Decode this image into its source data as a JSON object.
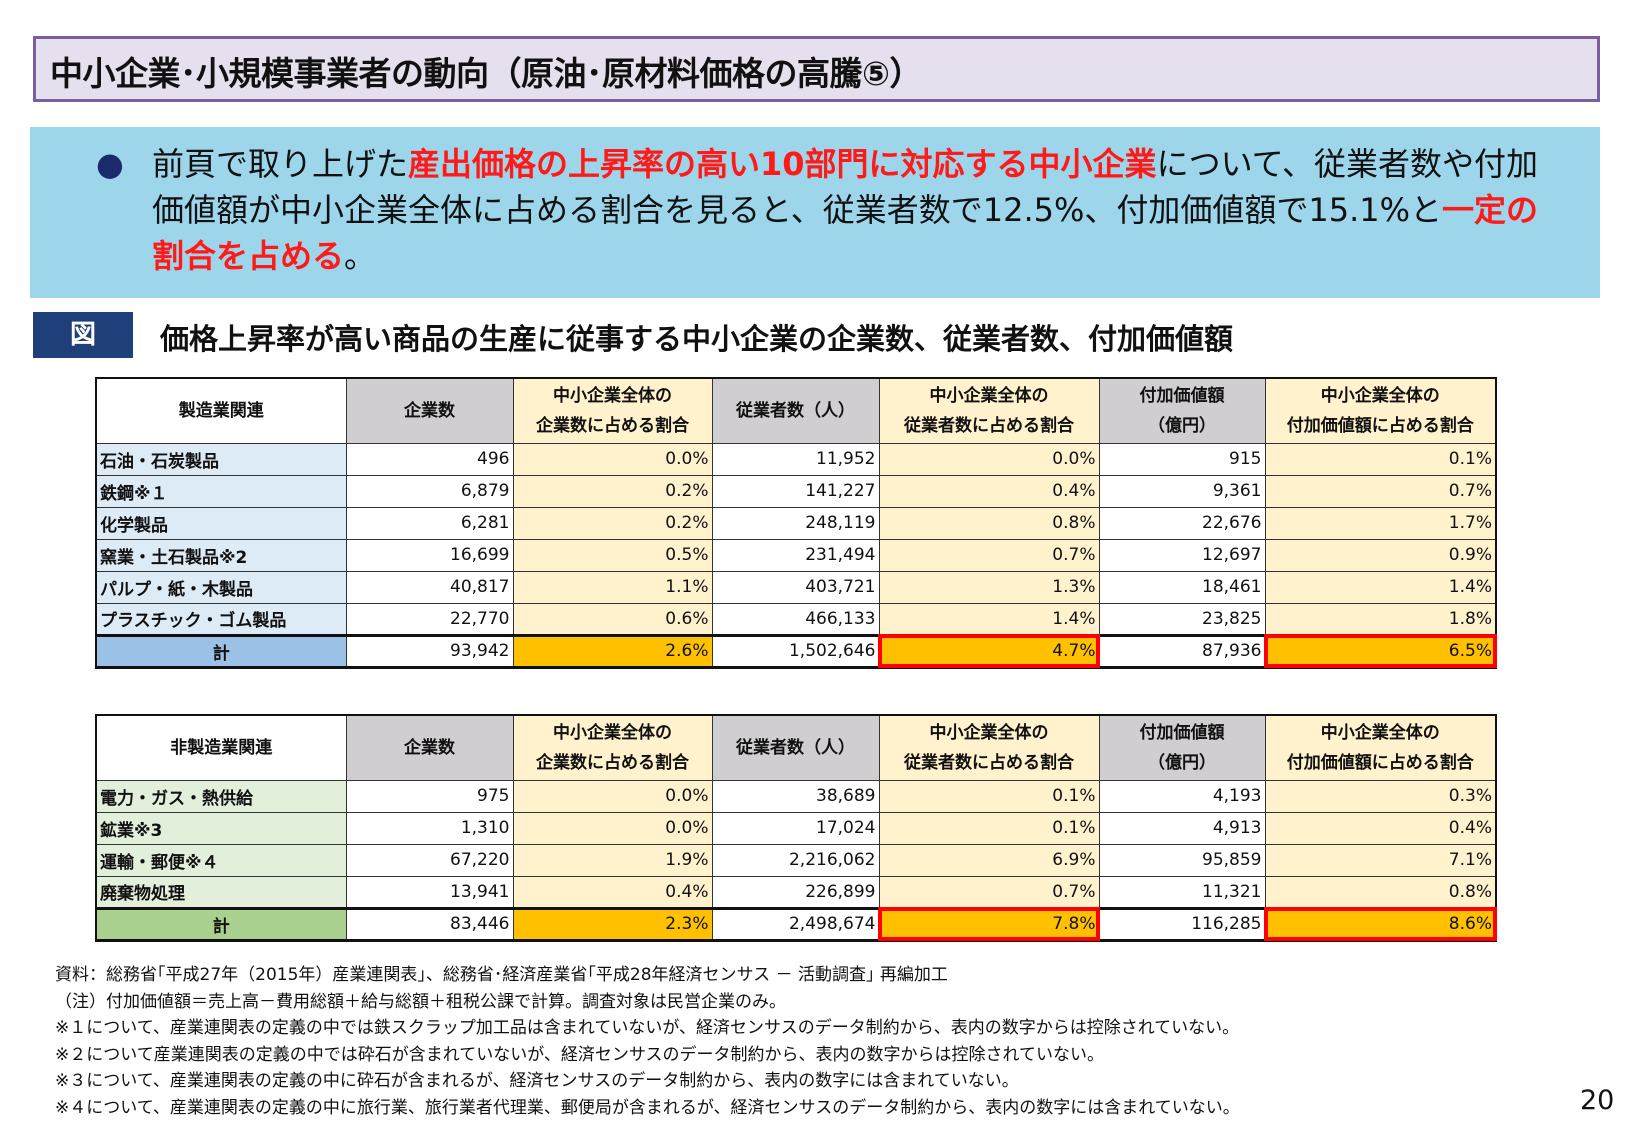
{
  "title": "中小企業･小規模事業者の動向（原油･原材料価格の高騰⑤）",
  "lead": {
    "bullet": "●",
    "t1": "前頁で取り上げた",
    "r1": "産出価格の上昇率の高い10部門に対応する中小企業",
    "t2": "について、従業者数や付加価値額が中小企業全体に占める割合を見ると、従業者数で12.5%、付加価値額で15.1%と",
    "r2": "一定の割合を占める",
    "t3": "。"
  },
  "figure": {
    "label": "図",
    "title": "価格上昇率が高い商品の生産に従事する中小企業の企業数、従業者数、付加価値額"
  },
  "headers": [
    "企業数",
    "中小企業全体の",
    "企業数に占める割合",
    "従業者数（人）",
    "中小企業全体の",
    "従業者数に占める割合",
    "付加価値額",
    "（億円）",
    "中小企業全体の",
    "付加価値額に占める割合"
  ],
  "table1": {
    "category": "製造業関連",
    "rows": [
      [
        "石油・石炭製品",
        "496",
        "0.0%",
        "11,952",
        "0.0%",
        "915",
        "0.1%"
      ],
      [
        "鉄鋼※１",
        "6,879",
        "0.2%",
        "141,227",
        "0.4%",
        "9,361",
        "0.7%"
      ],
      [
        "化学製品",
        "6,281",
        "0.2%",
        "248,119",
        "0.8%",
        "22,676",
        "1.7%"
      ],
      [
        "窯業・土石製品※2",
        "16,699",
        "0.5%",
        "231,494",
        "0.7%",
        "12,697",
        "0.9%"
      ],
      [
        "パルプ・紙・木製品",
        "40,817",
        "1.1%",
        "403,721",
        "1.3%",
        "18,461",
        "1.4%"
      ],
      [
        "プラスチック・ゴム製品",
        "22,770",
        "0.6%",
        "466,133",
        "1.4%",
        "23,825",
        "1.8%"
      ]
    ],
    "total": [
      "計",
      "93,942",
      "2.6%",
      "1,502,646",
      "4.7%",
      "87,936",
      "6.5%"
    ]
  },
  "table2": {
    "category": "非製造業関連",
    "rows": [
      [
        "電力・ガス・熱供給",
        "975",
        "0.0%",
        "38,689",
        "0.1%",
        "4,193",
        "0.3%"
      ],
      [
        "鉱業※3",
        "1,310",
        "0.0%",
        "17,024",
        "0.1%",
        "4,913",
        "0.4%"
      ],
      [
        "運輸・郵便※４",
        "67,220",
        "1.9%",
        "2,216,062",
        "6.9%",
        "95,859",
        "7.1%"
      ],
      [
        "廃棄物処理",
        "13,941",
        "0.4%",
        "226,899",
        "0.7%",
        "11,321",
        "0.8%"
      ]
    ],
    "total": [
      "計",
      "83,446",
      "2.3%",
      "2,498,674",
      "7.8%",
      "116,285",
      "8.6%"
    ]
  },
  "notes": [
    "資料：総務省｢平成27年（2015年）産業連関表｣、総務省･経済産業省｢平成28年経済センサス － 活動調査｣ 再編加工",
    "（注）付加価値額＝売上高－費用総額＋給与総額＋租税公課で計算。調査対象は民営企業のみ。",
    "※１について、産業連関表の定義の中では鉄スクラップ加工品は含まれていないが、経済センサスのデータ制約から、表内の数字からは控除されていない。",
    "※２について産業連関表の定義の中では砕石が含まれていないが、経済センサスのデータ制約から、表内の数字からは控除されていない。",
    "※３について、産業連関表の定義の中に砕石が含まれるが、経済センサスのデータ制約から、表内の数字には含まれていない。",
    "※４について、産業連関表の定義の中に旅行業、旅行業者代理業、郵便局が含まれるが、経済センサスのデータ制約から、表内の数字には含まれていない。"
  ],
  "page": "20"
}
